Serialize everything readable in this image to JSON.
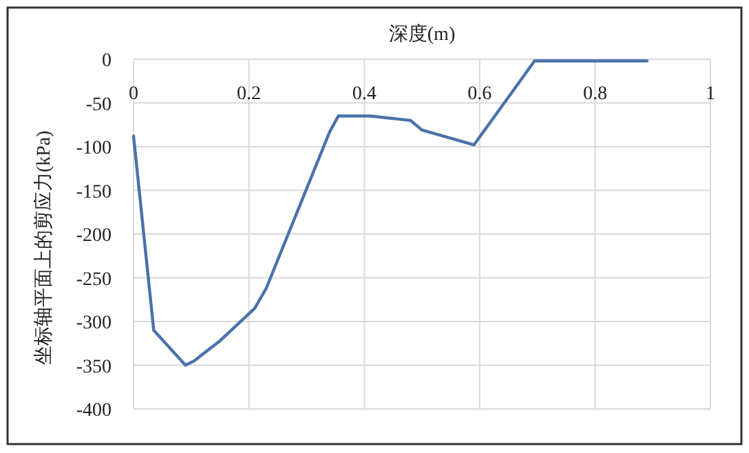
{
  "chart_data": {
    "type": "line",
    "xlabel": "深度(m)",
    "ylabel": "坐标轴平面上的剪应力(kPa)",
    "x": [
      0,
      0.035,
      0.09,
      0.105,
      0.15,
      0.21,
      0.23,
      0.34,
      0.355,
      0.41,
      0.48,
      0.5,
      0.59,
      0.67,
      0.695,
      0.89
    ],
    "series": [
      {
        "color": "#4a72a8",
        "values": [
          -88,
          -310,
          -350,
          -345,
          -322,
          -285,
          -262,
          -83,
          -65,
          -65,
          -70,
          -81,
          -98,
          -25,
          -2,
          -2
        ]
      }
    ],
    "xlim": [
      0,
      1
    ],
    "xticks": [
      0,
      0.2,
      0.4,
      0.6,
      0.8,
      1
    ],
    "ylim": [
      -400,
      0
    ],
    "yticks": [
      0,
      -50,
      -100,
      -150,
      -200,
      -250,
      -300,
      -350,
      -400
    ],
    "grid": true,
    "marker": "none",
    "line_style": "solid"
  }
}
